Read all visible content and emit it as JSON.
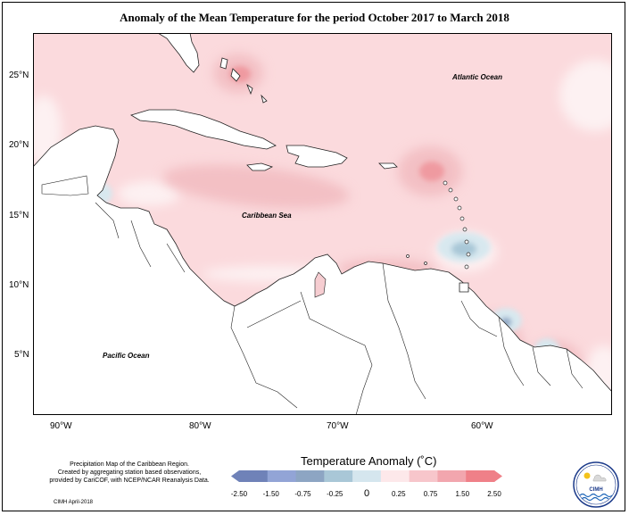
{
  "title": "Anomaly of the Mean Temperature for the period October 2017 to March 2018",
  "map": {
    "labels": {
      "atlantic": "Atlantic Ocean",
      "caribbean": "Caribbean Sea",
      "pacific": "Pacific Ocean"
    },
    "lat_ticks": [
      "25°N",
      "20°N",
      "15°N",
      "10°N",
      "5°N"
    ],
    "lon_ticks": [
      "90°W",
      "80°W",
      "70°W",
      "60°W"
    ],
    "colors": {
      "land": "#ffffff",
      "sea_base": "#fbdadd",
      "anom_pos_light": "#f3c0c4",
      "anom_pos_strong": "#ef9aa0",
      "anom_neg_light": "#d8e8ef",
      "anom_neg_strong": "#a9c7d7",
      "outline": "#222222"
    }
  },
  "legend": {
    "title": "Temperature Anomaly (˚C)",
    "ticks": [
      "-2.50",
      "-1.50",
      "-0.75",
      "-0.25",
      "0",
      "0.25",
      "0.75",
      "1.50",
      "2.50"
    ],
    "colors": [
      "#6f82b8",
      "#92a4d6",
      "#8da5c3",
      "#a9c7d7",
      "#d5e6ee",
      "#fde8ea",
      "#f7c6cb",
      "#f2a6ae",
      "#ef8088"
    ]
  },
  "credits": [
    "Precipitation Map of the Caribbean Region.",
    "Created by aggregating station based observations,",
    "provided by CariCOF, with NCEP/NCAR Reanalysis Data."
  ],
  "footer": "CIMH April-2018",
  "logo": {
    "text": "CIMH"
  }
}
